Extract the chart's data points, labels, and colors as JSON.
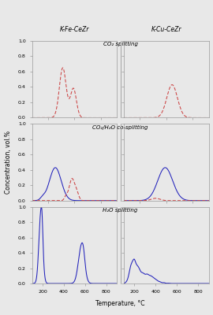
{
  "col_titles": [
    "K-Fe-CeZr",
    "K-Cu-CeZr"
  ],
  "row_titles": [
    "CO₂ splitting",
    "CO₂/H₂O co-splitting",
    "H₂O splitting"
  ],
  "ylabel": "Concentration, vol.%",
  "xlabel": "Temperature, °C",
  "xlim": [
    100,
    900
  ],
  "ylim": [
    0.0,
    1.0
  ],
  "yticks": [
    0.0,
    0.2,
    0.4,
    0.6,
    0.8,
    1.0
  ],
  "xticks": [
    200,
    400,
    600,
    800
  ],
  "blue_color": "#2222bb",
  "red_color": "#cc4444",
  "bg_color": "#e8e8e8",
  "spine_color": "#999999"
}
